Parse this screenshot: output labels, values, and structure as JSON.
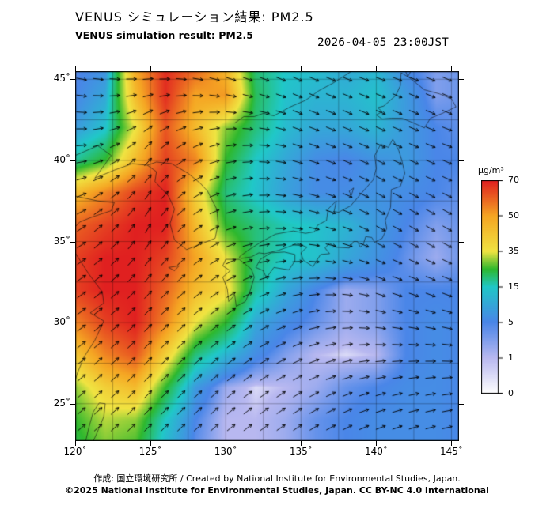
{
  "header": {
    "title_jp": "VENUS シミュレーション結果: PM2.5",
    "title_en": "VENUS simulation result: PM2.5",
    "timestamp": "2026-04-05 23:00JST"
  },
  "footer": {
    "credit": "作成: 国立環境研究所 / Created by National Institute for Environmental Studies, Japan.",
    "copyright": "©2025 National Institute for Environmental Studies, Japan. CC BY-NC 4.0 International"
  },
  "chart_data": {
    "type": "heatmap",
    "title": "VENUS simulation result: PM2.5",
    "subtitle_jp": "VENUS シミュレーション結果: PM2.5",
    "valid_time": "2026-04-05 23:00JST",
    "units_label": "µg/m³",
    "extent": {
      "lon_min": 120,
      "lon_max": 145.5,
      "lat_min": 22.7,
      "lat_max": 45.5
    },
    "axis": {
      "lon_ticks": [
        120,
        125,
        130,
        135,
        140,
        145
      ],
      "lon_tick_labels": [
        "120˚",
        "125˚",
        "130˚",
        "135˚",
        "140˚",
        "145˚"
      ],
      "lat_ticks": [
        45,
        40,
        35,
        30,
        25
      ],
      "lat_tick_labels": [
        "45˚",
        "40˚",
        "35˚",
        "30˚",
        "25˚"
      ],
      "grid_interval_deg": 2.5
    },
    "colorbar": {
      "tick_values": [
        0,
        1,
        5,
        15,
        35,
        50,
        70
      ],
      "tick_labels": [
        "0",
        "1",
        "5",
        "15",
        "35",
        "50",
        "70"
      ],
      "colors": [
        "#ffffff",
        "#b8b8f0",
        "#4a86e8",
        "#20c8c8",
        "#2eb82e",
        "#f0e442",
        "#f5a623",
        "#e02020"
      ],
      "color_positions": [
        0,
        0.1667,
        0.3333,
        0.5,
        0.5833,
        0.6667,
        0.8333,
        1
      ]
    },
    "pm25_field": {
      "lons": [
        120,
        122,
        124,
        126,
        128,
        130,
        132,
        134,
        136,
        138,
        140,
        142,
        144,
        146
      ],
      "lats": [
        46,
        44,
        42,
        40,
        38,
        36,
        34,
        32,
        30,
        28,
        26,
        24,
        22
      ],
      "values": [
        [
          4,
          6,
          50,
          68,
          62,
          45,
          20,
          15,
          14,
          10,
          12,
          5,
          3,
          4
        ],
        [
          5,
          10,
          45,
          68,
          50,
          52,
          22,
          14,
          12,
          12,
          14,
          8,
          3,
          4
        ],
        [
          8,
          14,
          35,
          62,
          45,
          30,
          20,
          13,
          10,
          10,
          12,
          8,
          5,
          4
        ],
        [
          18,
          25,
          45,
          65,
          55,
          25,
          15,
          10,
          6,
          5,
          7,
          8,
          5,
          5
        ],
        [
          45,
          55,
          65,
          70,
          40,
          20,
          14,
          9,
          6,
          6,
          7,
          6,
          5,
          4
        ],
        [
          60,
          65,
          70,
          70,
          45,
          25,
          20,
          16,
          14,
          12,
          8,
          5,
          3,
          4
        ],
        [
          65,
          70,
          70,
          65,
          50,
          35,
          20,
          15,
          14,
          10,
          7,
          4,
          2,
          4
        ],
        [
          65,
          70,
          70,
          60,
          45,
          38,
          18,
          10,
          5,
          2,
          3,
          5,
          5,
          5
        ],
        [
          55,
          65,
          70,
          55,
          35,
          25,
          10,
          6,
          4,
          2,
          3,
          5,
          6,
          5
        ],
        [
          42,
          55,
          62,
          40,
          20,
          12,
          6,
          3,
          1,
          0.5,
          1,
          5,
          6,
          5
        ],
        [
          30,
          40,
          45,
          25,
          8,
          2,
          0.5,
          1,
          2,
          4,
          5,
          6,
          6,
          5
        ],
        [
          25,
          32,
          30,
          15,
          5,
          1,
          1,
          2,
          4,
          5,
          6,
          6,
          6,
          5
        ],
        [
          22,
          28,
          25,
          12,
          4,
          1,
          1,
          2,
          4,
          5,
          6,
          6,
          6,
          5
        ]
      ]
    },
    "wind_field": {
      "lons": [
        120,
        125,
        130,
        135,
        140,
        146
      ],
      "lats": [
        46,
        41,
        36,
        31,
        26,
        22
      ],
      "dir_deg_ccw_from_east": [
        [
          -15,
          -5,
          -25,
          -25,
          -20,
          -25
        ],
        [
          0,
          45,
          10,
          -20,
          -25,
          -20
        ],
        [
          30,
          60,
          20,
          -10,
          -30,
          -30
        ],
        [
          35,
          45,
          35,
          15,
          -15,
          -20
        ],
        [
          40,
          45,
          40,
          30,
          15,
          5
        ],
        [
          40,
          45,
          40,
          35,
          25,
          15
        ]
      ]
    },
    "coastlines": [
      [
        [
          124.8,
          39.7
        ],
        [
          125.4,
          39.3
        ],
        [
          125.3,
          38.7
        ],
        [
          126.2,
          37.8
        ],
        [
          126.6,
          37.0
        ],
        [
          126.3,
          36.1
        ],
        [
          126.6,
          35.1
        ],
        [
          127.4,
          34.5
        ],
        [
          128.5,
          34.9
        ],
        [
          129.3,
          35.2
        ],
        [
          129.5,
          36.1
        ],
        [
          129.4,
          37.0
        ],
        [
          128.8,
          38.1
        ],
        [
          128.3,
          38.6
        ],
        [
          127.5,
          39.2
        ],
        [
          126.4,
          39.8
        ],
        [
          125.4,
          39.9
        ],
        [
          124.8,
          39.7
        ]
      ],
      [
        [
          120.0,
          40.3
        ],
        [
          121.5,
          40.9
        ],
        [
          122.4,
          40.3
        ],
        [
          121.3,
          38.9
        ],
        [
          122.6,
          39.4
        ],
        [
          123.8,
          39.8
        ],
        [
          124.8,
          39.7
        ]
      ],
      [
        [
          120.0,
          37.8
        ],
        [
          121.5,
          37.5
        ],
        [
          122.6,
          37.4
        ],
        [
          122.4,
          36.9
        ],
        [
          121.1,
          36.5
        ],
        [
          120.3,
          36.2
        ],
        [
          120.0,
          35.9
        ]
      ],
      [
        [
          120.0,
          34.3
        ],
        [
          120.9,
          33.0
        ],
        [
          121.8,
          31.9
        ],
        [
          121.9,
          31.2
        ],
        [
          121.0,
          30.6
        ],
        [
          121.9,
          30.1
        ],
        [
          121.3,
          28.9
        ],
        [
          120.6,
          27.9
        ],
        [
          120.15,
          26.9
        ],
        [
          120.0,
          26.4
        ]
      ],
      [
        [
          120.7,
          22.7
        ],
        [
          120.9,
          23.5
        ],
        [
          121.2,
          24.5
        ],
        [
          121.6,
          25.05
        ],
        [
          122.0,
          25.0
        ],
        [
          121.9,
          24.2
        ],
        [
          121.4,
          23.1
        ],
        [
          121.2,
          22.7
        ]
      ],
      [
        [
          130.0,
          33.9
        ],
        [
          130.9,
          33.9
        ],
        [
          131.7,
          33.3
        ],
        [
          131.9,
          32.8
        ],
        [
          131.6,
          31.9
        ],
        [
          131.3,
          31.3
        ],
        [
          130.7,
          31.0
        ],
        [
          130.6,
          31.7
        ],
        [
          130.2,
          31.3
        ],
        [
          130.1,
          32.1
        ],
        [
          129.8,
          32.8
        ],
        [
          130.3,
          33.2
        ],
        [
          129.8,
          33.5
        ],
        [
          130.0,
          33.9
        ]
      ],
      [
        [
          132.0,
          33.4
        ],
        [
          132.5,
          33.2
        ],
        [
          132.7,
          32.75
        ],
        [
          133.2,
          33.4
        ],
        [
          134.2,
          33.25
        ],
        [
          134.6,
          33.8
        ],
        [
          134.6,
          34.2
        ],
        [
          133.9,
          34.35
        ],
        [
          133.0,
          34.3
        ],
        [
          132.3,
          33.9
        ],
        [
          132.0,
          33.4
        ]
      ],
      [
        [
          130.9,
          34.05
        ],
        [
          131.4,
          34.4
        ],
        [
          132.4,
          35.0
        ],
        [
          133.3,
          35.45
        ],
        [
          134.5,
          35.65
        ],
        [
          135.3,
          35.5
        ],
        [
          135.9,
          35.6
        ],
        [
          136.1,
          36.0
        ],
        [
          136.7,
          36.3
        ],
        [
          136.8,
          37.0
        ],
        [
          137.35,
          37.5
        ],
        [
          137.2,
          36.85
        ],
        [
          137.5,
          36.8
        ],
        [
          138.3,
          37.2
        ],
        [
          138.9,
          37.85
        ],
        [
          139.8,
          38.8
        ],
        [
          140.0,
          39.5
        ],
        [
          139.9,
          40.3
        ],
        [
          140.3,
          41.0
        ],
        [
          140.8,
          40.8
        ],
        [
          141.1,
          41.3
        ],
        [
          141.5,
          40.6
        ],
        [
          141.7,
          40.0
        ],
        [
          141.9,
          39.2
        ],
        [
          141.6,
          38.4
        ],
        [
          141.0,
          38.2
        ],
        [
          140.95,
          37.1
        ],
        [
          140.6,
          36.3
        ],
        [
          140.7,
          35.8
        ],
        [
          140.4,
          35.2
        ],
        [
          139.9,
          34.95
        ],
        [
          139.7,
          35.25
        ],
        [
          139.3,
          35.3
        ],
        [
          139.15,
          34.85
        ],
        [
          138.95,
          34.65
        ],
        [
          138.75,
          35.0
        ],
        [
          138.5,
          35.0
        ],
        [
          138.2,
          34.6
        ],
        [
          137.3,
          34.65
        ],
        [
          136.9,
          34.9
        ],
        [
          136.6,
          34.6
        ],
        [
          136.9,
          34.25
        ],
        [
          136.3,
          34.2
        ],
        [
          135.8,
          33.45
        ],
        [
          135.15,
          33.85
        ],
        [
          135.0,
          34.3
        ],
        [
          135.4,
          34.65
        ],
        [
          134.7,
          34.9
        ],
        [
          134.4,
          34.75
        ],
        [
          133.5,
          34.45
        ],
        [
          132.6,
          34.25
        ],
        [
          132.2,
          34.3
        ],
        [
          131.7,
          34.05
        ],
        [
          131.0,
          33.95
        ],
        [
          130.9,
          34.05
        ]
      ],
      [
        [
          140.4,
          42.55
        ],
        [
          141.0,
          42.6
        ],
        [
          141.7,
          42.6
        ],
        [
          142.5,
          42.3
        ],
        [
          143.2,
          42.0
        ],
        [
          143.6,
          42.6
        ],
        [
          144.4,
          42.9
        ],
        [
          145.3,
          43.3
        ],
        [
          145.0,
          43.8
        ],
        [
          144.2,
          44.1
        ],
        [
          143.2,
          44.35
        ],
        [
          142.2,
          45.1
        ],
        [
          141.65,
          45.4
        ],
        [
          141.6,
          44.6
        ],
        [
          141.3,
          44.0
        ],
        [
          140.5,
          43.35
        ],
        [
          140.1,
          43.25
        ],
        [
          140.4,
          43.0
        ],
        [
          140.0,
          42.8
        ],
        [
          140.4,
          42.55
        ]
      ],
      [
        [
          130.6,
          42.3
        ],
        [
          131.2,
          42.7
        ],
        [
          131.9,
          42.7
        ],
        [
          132.5,
          42.9
        ],
        [
          133.2,
          42.75
        ],
        [
          134.3,
          43.3
        ],
        [
          135.3,
          43.7
        ],
        [
          136.2,
          44.3
        ],
        [
          137.2,
          44.8
        ],
        [
          138.2,
          45.4
        ],
        [
          138.5,
          45.6
        ]
      ],
      [
        [
          141.9,
          45.6
        ],
        [
          142.1,
          45.15
        ],
        [
          142.35,
          45.6
        ]
      ],
      [
        [
          138.2,
          38.1
        ],
        [
          138.5,
          38.3
        ],
        [
          138.35,
          37.85
        ],
        [
          138.2,
          38.1
        ]
      ],
      [
        [
          126.2,
          33.4
        ],
        [
          126.9,
          33.5
        ],
        [
          126.6,
          33.2
        ],
        [
          126.2,
          33.4
        ]
      ]
    ]
  }
}
